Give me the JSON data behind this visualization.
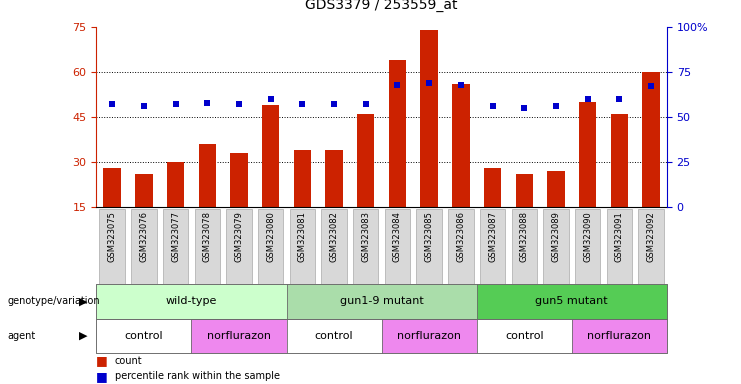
{
  "title": "GDS3379 / 253559_at",
  "samples": [
    "GSM323075",
    "GSM323076",
    "GSM323077",
    "GSM323078",
    "GSM323079",
    "GSM323080",
    "GSM323081",
    "GSM323082",
    "GSM323083",
    "GSM323084",
    "GSM323085",
    "GSM323086",
    "GSM323087",
    "GSM323088",
    "GSM323089",
    "GSM323090",
    "GSM323091",
    "GSM323092"
  ],
  "counts": [
    28,
    26,
    30,
    36,
    33,
    49,
    34,
    34,
    46,
    64,
    74,
    56,
    28,
    26,
    27,
    50,
    46,
    60
  ],
  "percentile": [
    57,
    56,
    57,
    58,
    57,
    60,
    57,
    57,
    57,
    68,
    69,
    68,
    56,
    55,
    56,
    60,
    60,
    67
  ],
  "ylim_left": [
    15,
    75
  ],
  "ylim_right": [
    0,
    100
  ],
  "left_ticks": [
    15,
    30,
    45,
    60,
    75
  ],
  "right_ticks": [
    0,
    25,
    50,
    75,
    100
  ],
  "bar_color": "#cc2200",
  "dot_color": "#0000cc",
  "bar_width": 0.55,
  "genotype_groups": [
    {
      "label": "wild-type",
      "start": 0,
      "end": 5,
      "color": "#ccffcc"
    },
    {
      "label": "gun1-9 mutant",
      "start": 6,
      "end": 11,
      "color": "#aaddaa"
    },
    {
      "label": "gun5 mutant",
      "start": 12,
      "end": 17,
      "color": "#55cc55"
    }
  ],
  "agent_groups": [
    {
      "label": "control",
      "start": 0,
      "end": 2,
      "color": "#ffffff"
    },
    {
      "label": "norflurazon",
      "start": 3,
      "end": 5,
      "color": "#ee88ee"
    },
    {
      "label": "control",
      "start": 6,
      "end": 8,
      "color": "#ffffff"
    },
    {
      "label": "norflurazon",
      "start": 9,
      "end": 11,
      "color": "#ee88ee"
    },
    {
      "label": "control",
      "start": 12,
      "end": 14,
      "color": "#ffffff"
    },
    {
      "label": "norflurazon",
      "start": 15,
      "end": 17,
      "color": "#ee88ee"
    }
  ]
}
